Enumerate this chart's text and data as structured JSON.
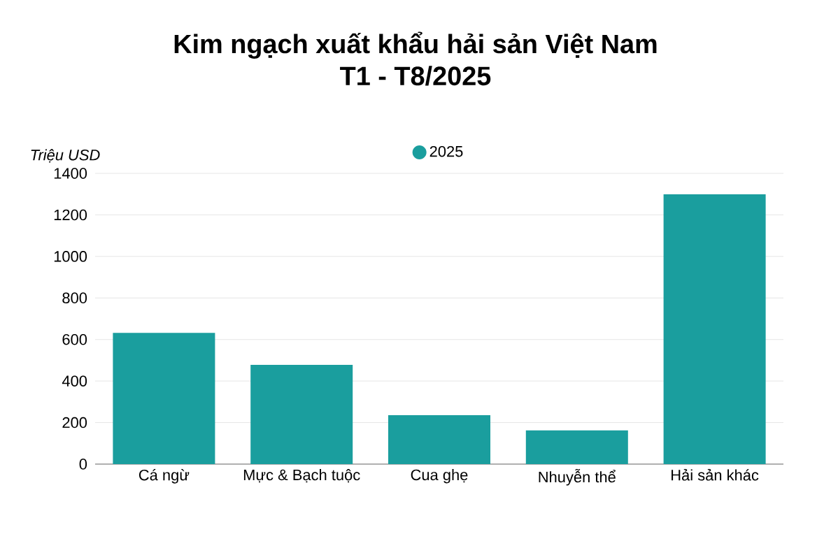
{
  "chart_data": {
    "type": "bar",
    "title": "Kim ngạch xuất khẩu hải sản Việt Nam\nT1 - T8/2025",
    "ylabel": "Triệu USD",
    "categories": [
      "Cá ngừ",
      "Mực & Bạch tuộc",
      "Cua ghẹ",
      "Nhuyễn thể",
      "Hải sản khác"
    ],
    "series": [
      {
        "name": "2025",
        "color": "#1a9e9e",
        "values": [
          632,
          478,
          236,
          162,
          1299
        ]
      }
    ],
    "ylim": [
      0,
      1400
    ],
    "yticks": [
      0,
      200,
      400,
      600,
      800,
      1000,
      1200,
      1400
    ],
    "grid": "y",
    "legend": "top"
  }
}
